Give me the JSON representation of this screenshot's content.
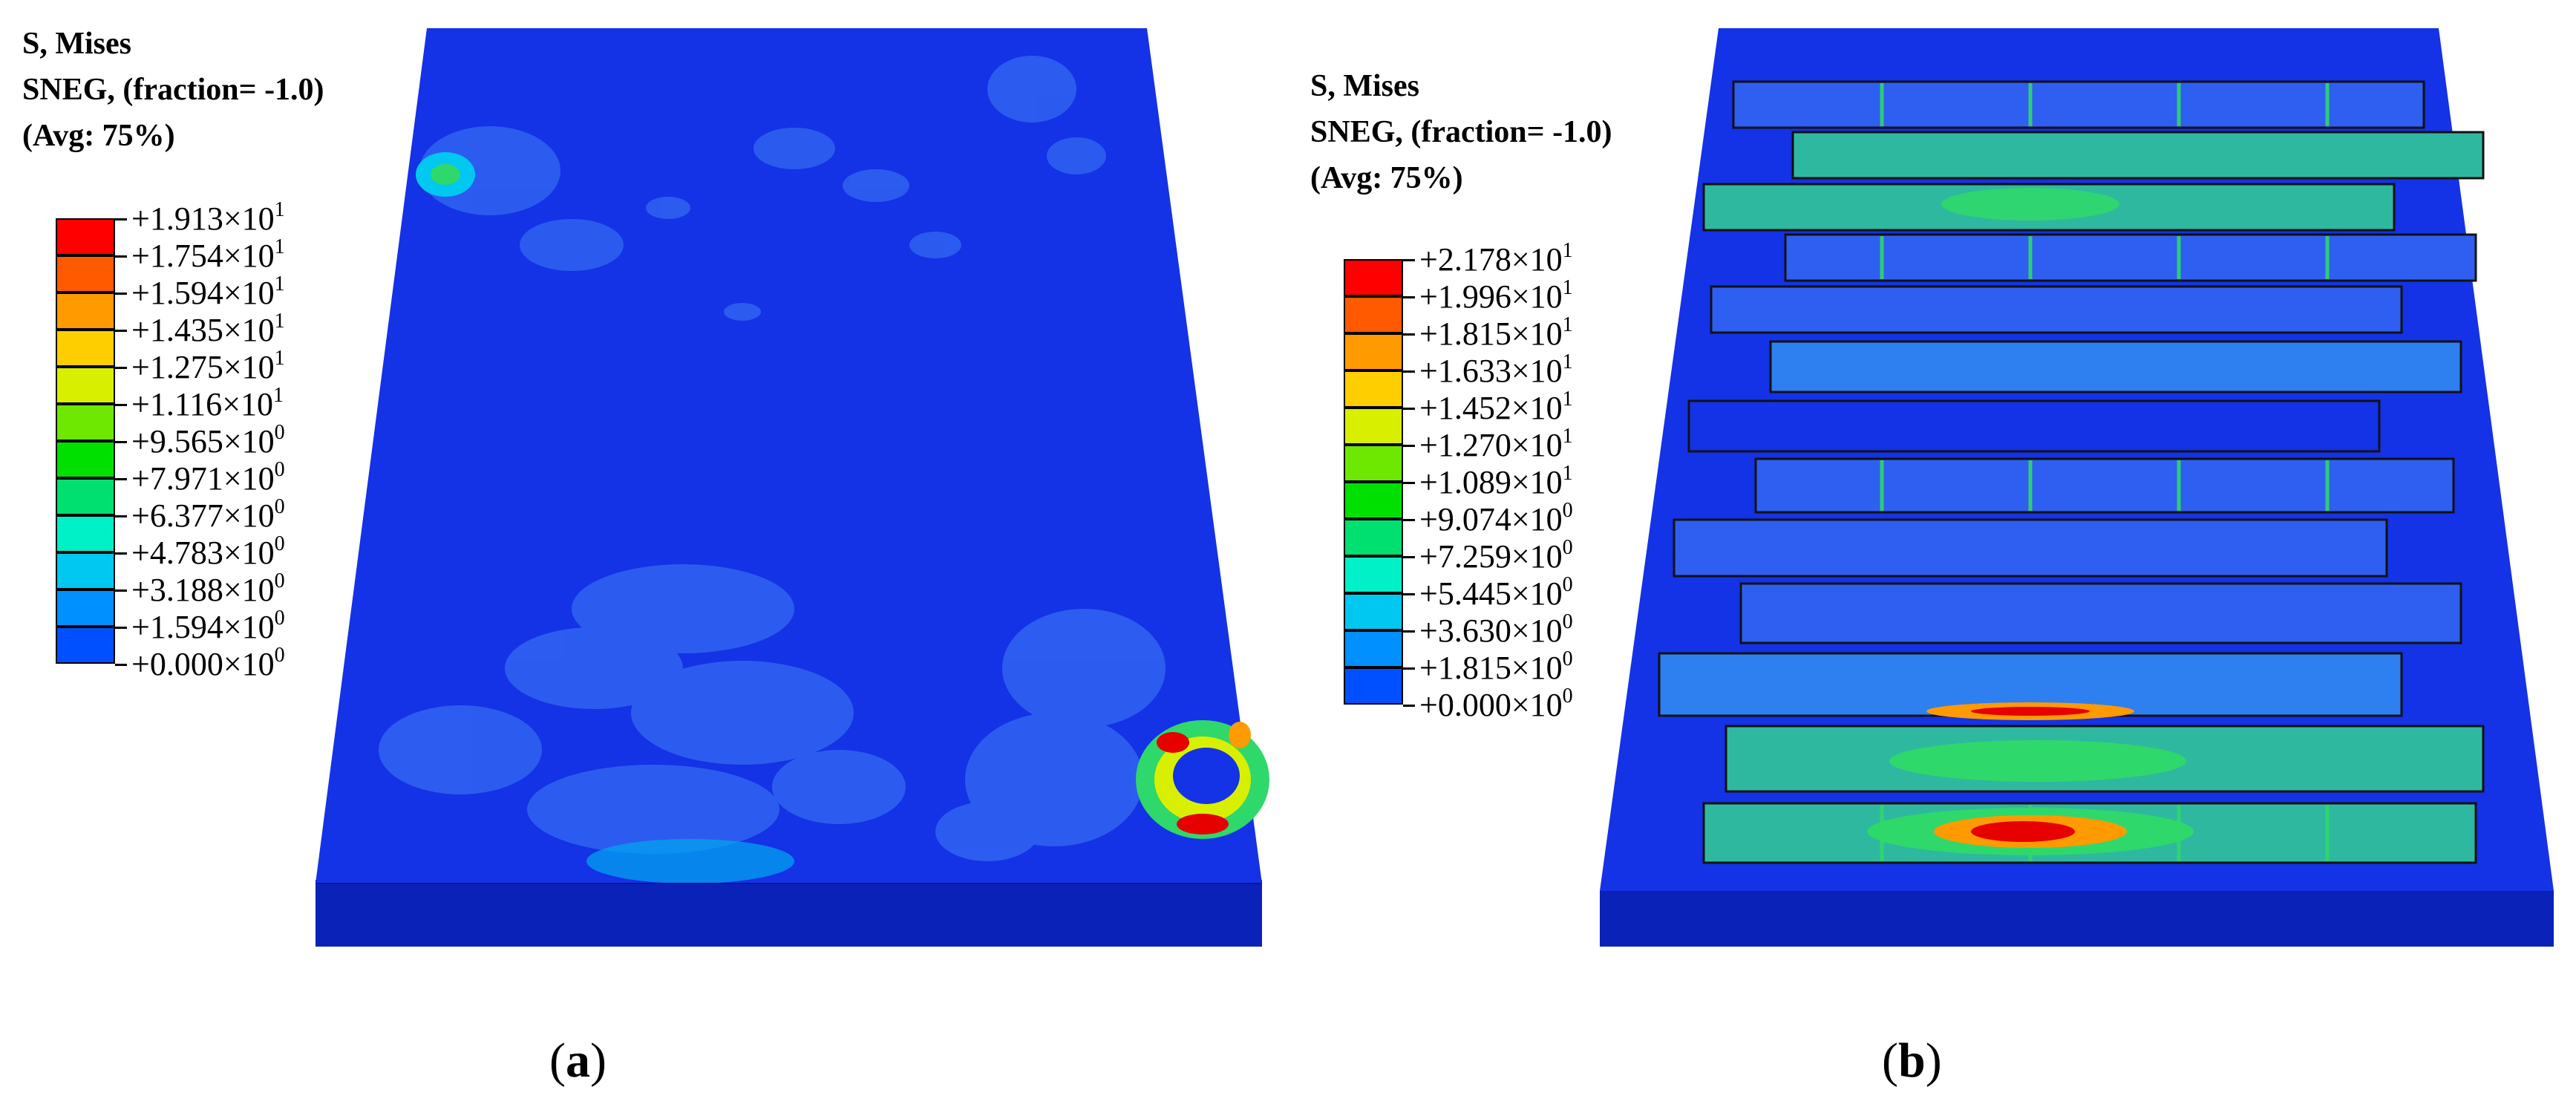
{
  "panels": [
    {
      "caption_letter": "a",
      "legend_title": [
        "S, Mises",
        "SNEG, (fraction= -1.0)",
        "(Avg: 75%)"
      ],
      "legend_levels": [
        {
          "mantissa": "+1.913",
          "exp": "1",
          "color": "#ff0000"
        },
        {
          "mantissa": "+1.754",
          "exp": "1",
          "color": "#ff5a00"
        },
        {
          "mantissa": "+1.594",
          "exp": "1",
          "color": "#ff9a00"
        },
        {
          "mantissa": "+1.435",
          "exp": "1",
          "color": "#ffce00"
        },
        {
          "mantissa": "+1.275",
          "exp": "1",
          "color": "#d8f000"
        },
        {
          "mantissa": "+1.116",
          "exp": "1",
          "color": "#6ee800"
        },
        {
          "mantissa": "+9.565",
          "exp": "0",
          "color": "#00e000"
        },
        {
          "mantissa": "+7.971",
          "exp": "0",
          "color": "#00e070"
        },
        {
          "mantissa": "+6.377",
          "exp": "0",
          "color": "#00f0c8"
        },
        {
          "mantissa": "+4.783",
          "exp": "0",
          "color": "#00c8f0"
        },
        {
          "mantissa": "+3.188",
          "exp": "0",
          "color": "#0090ff"
        },
        {
          "mantissa": "+1.594",
          "exp": "0",
          "color": "#0050ff"
        },
        {
          "mantissa": "+0.000",
          "exp": "0",
          "color": "#0000ff"
        }
      ]
    },
    {
      "caption_letter": "b",
      "legend_title": [
        "S, Mises",
        "SNEG, (fraction= -1.0)",
        "(Avg: 75%)"
      ],
      "legend_levels": [
        {
          "mantissa": "+2.178",
          "exp": "1",
          "color": "#ff0000"
        },
        {
          "mantissa": "+1.996",
          "exp": "1",
          "color": "#ff5a00"
        },
        {
          "mantissa": "+1.815",
          "exp": "1",
          "color": "#ff9a00"
        },
        {
          "mantissa": "+1.633",
          "exp": "1",
          "color": "#ffce00"
        },
        {
          "mantissa": "+1.452",
          "exp": "1",
          "color": "#d8f000"
        },
        {
          "mantissa": "+1.270",
          "exp": "1",
          "color": "#6ee800"
        },
        {
          "mantissa": "+1.089",
          "exp": "1",
          "color": "#00e000"
        },
        {
          "mantissa": "+9.074",
          "exp": "0",
          "color": "#00e070"
        },
        {
          "mantissa": "+7.259",
          "exp": "0",
          "color": "#00f0c8"
        },
        {
          "mantissa": "+5.445",
          "exp": "0",
          "color": "#00c8f0"
        },
        {
          "mantissa": "+3.630",
          "exp": "0",
          "color": "#0090ff"
        },
        {
          "mantissa": "+1.815",
          "exp": "0",
          "color": "#0050ff"
        },
        {
          "mantissa": "+0.000",
          "exp": "0",
          "color": "#0000ff"
        }
      ]
    }
  ],
  "times_sign": "×10",
  "colors": {
    "model_base": "#1432e6",
    "model_side": "#0a22b8",
    "slab_light": "#2e5ff0",
    "field_green": "#2fd86a",
    "hot_red": "#e60000"
  }
}
